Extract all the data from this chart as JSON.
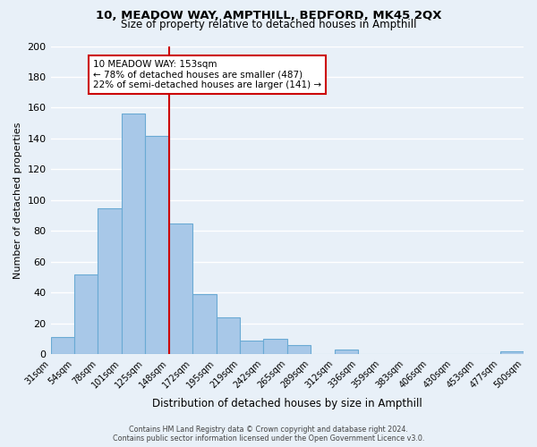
{
  "title": "10, MEADOW WAY, AMPTHILL, BEDFORD, MK45 2QX",
  "subtitle": "Size of property relative to detached houses in Ampthill",
  "xlabel": "Distribution of detached houses by size in Ampthill",
  "ylabel": "Number of detached properties",
  "footer_lines": [
    "Contains HM Land Registry data © Crown copyright and database right 2024.",
    "Contains public sector information licensed under the Open Government Licence v3.0."
  ],
  "bin_labels": [
    "31sqm",
    "54sqm",
    "78sqm",
    "101sqm",
    "125sqm",
    "148sqm",
    "172sqm",
    "195sqm",
    "219sqm",
    "242sqm",
    "265sqm",
    "289sqm",
    "312sqm",
    "336sqm",
    "359sqm",
    "383sqm",
    "406sqm",
    "430sqm",
    "453sqm",
    "477sqm",
    "500sqm"
  ],
  "bar_values": [
    11,
    52,
    95,
    156,
    142,
    85,
    39,
    24,
    9,
    10,
    6,
    0,
    3,
    0,
    0,
    0,
    0,
    0,
    0,
    2
  ],
  "bar_color": "#a8c8e8",
  "bar_edge_color": "#6aaad4",
  "reference_line_x": 5,
  "reference_line_color": "#cc0000",
  "annotation_text": "10 MEADOW WAY: 153sqm\n← 78% of detached houses are smaller (487)\n22% of semi-detached houses are larger (141) →",
  "annotation_box_color": "#ffffff",
  "annotation_box_edge_color": "#cc0000",
  "ylim": [
    0,
    200
  ],
  "yticks": [
    0,
    20,
    40,
    60,
    80,
    100,
    120,
    140,
    160,
    180,
    200
  ],
  "grid_color": "#ffffff",
  "background_color": "#e8f0f8"
}
